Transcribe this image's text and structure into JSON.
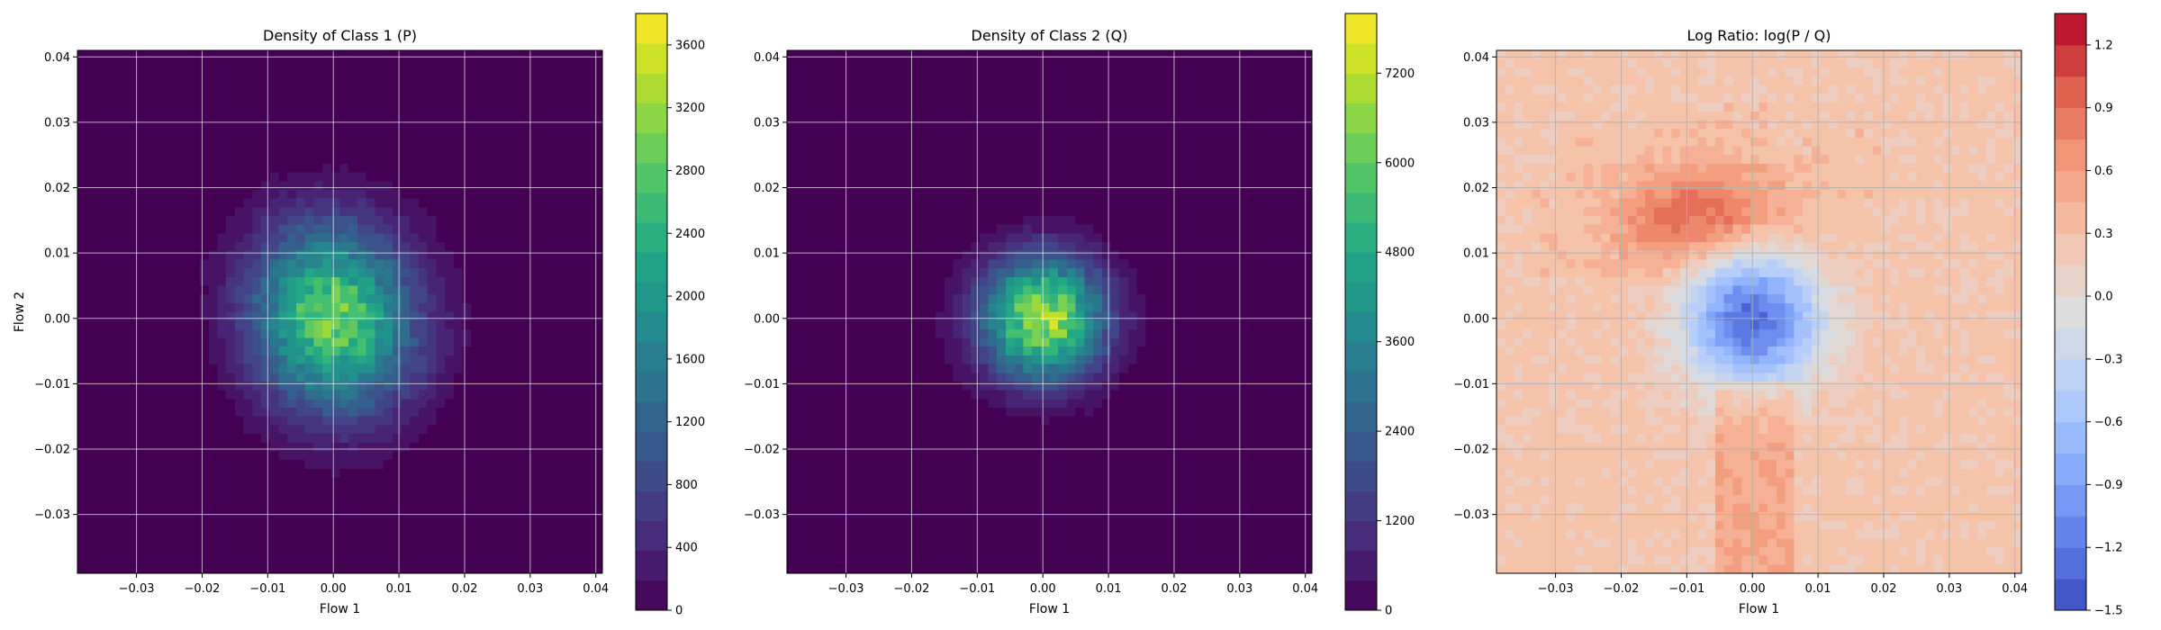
{
  "chart_data": [
    {
      "type": "heatmap",
      "title": "Density of Class 1 (P)",
      "xlabel": "Flow 1",
      "ylabel": "Flow 2",
      "xlim": [
        -0.039,
        0.041
      ],
      "ylim": [
        -0.039,
        0.041
      ],
      "x_ticks": [
        "−0.03",
        "−0.02",
        "−0.01",
        "0.00",
        "0.01",
        "0.02",
        "0.03",
        "0.04"
      ],
      "y_ticks": [
        "−0.03",
        "−0.02",
        "−0.01",
        "0.00",
        "0.01",
        "0.02",
        "0.03",
        "0.04"
      ],
      "grid": true,
      "colormap": "viridis",
      "colorbar": {
        "min": 0,
        "max": 3800,
        "ticks": [
          0,
          400,
          800,
          1200,
          1600,
          2000,
          2400,
          2800,
          3200,
          3600
        ]
      },
      "peak_value": 3000,
      "peak_location": [
        0.0,
        0.0
      ],
      "spread": [
        0.0085,
        0.0105
      ]
    },
    {
      "type": "heatmap",
      "title": "Density of Class 2 (Q)",
      "xlabel": "Flow 1",
      "ylabel": "",
      "xlim": [
        -0.039,
        0.041
      ],
      "ylim": [
        -0.039,
        0.041
      ],
      "x_ticks": [
        "−0.03",
        "−0.02",
        "−0.01",
        "0.00",
        "0.01",
        "0.02",
        "0.03",
        "0.04"
      ],
      "y_ticks": [
        "−0.03",
        "−0.02",
        "−0.01",
        "0.00",
        "0.01",
        "0.02",
        "0.03",
        "0.04"
      ],
      "grid": true,
      "colormap": "viridis",
      "colorbar": {
        "min": 0,
        "max": 8000,
        "ticks": [
          0,
          1200,
          2400,
          3600,
          4800,
          6000,
          7200
        ]
      },
      "peak_value": 7200,
      "peak_location": [
        0.0,
        0.0
      ],
      "spread": [
        0.0065,
        0.0065
      ]
    },
    {
      "type": "heatmap",
      "title": "Log Ratio: log(P / Q)",
      "xlabel": "Flow 1",
      "ylabel": "",
      "xlim": [
        -0.039,
        0.041
      ],
      "ylim": [
        -0.039,
        0.041
      ],
      "x_ticks": [
        "−0.03",
        "−0.02",
        "−0.01",
        "0.00",
        "0.01",
        "0.02",
        "0.03",
        "0.04"
      ],
      "y_ticks": [
        "−0.03",
        "−0.02",
        "−0.01",
        "0.00",
        "0.01",
        "0.02",
        "0.03",
        "0.04"
      ],
      "grid": true,
      "colormap": "coolwarm",
      "colorbar": {
        "min": -1.5,
        "max": 1.35,
        "ticks": [
          "−1.5",
          "−1.2",
          "−0.9",
          "−0.6",
          "−0.3",
          "0.0",
          "0.3",
          "0.6",
          "0.9",
          "1.2"
        ]
      },
      "center_value": -1.2,
      "background_value": 0.35,
      "high_region_value": 1.1,
      "high_region_location": [
        -0.007,
        0.015
      ]
    }
  ]
}
